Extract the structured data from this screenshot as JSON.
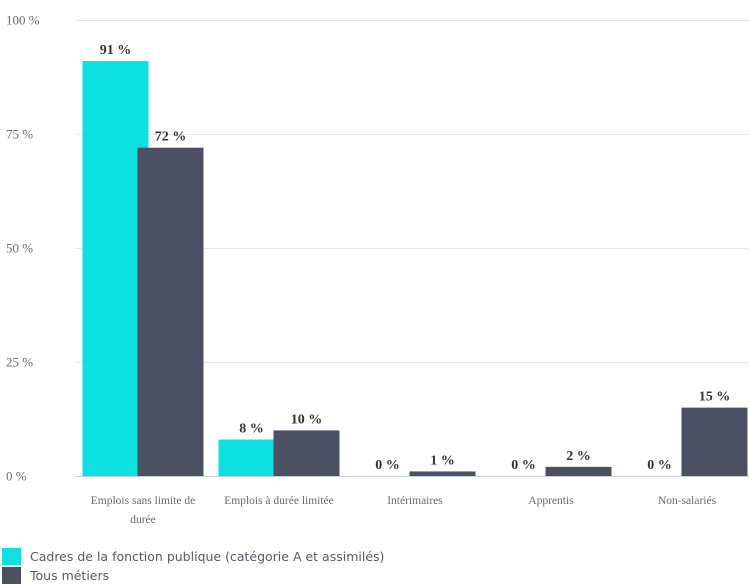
{
  "chart_data": {
    "type": "bar",
    "categories": [
      [
        "Emplois sans limite de",
        "durée"
      ],
      [
        "Emplois à durée limitée"
      ],
      [
        "Intérimaires"
      ],
      [
        "Apprentis"
      ],
      [
        "Non-salariés"
      ]
    ],
    "series": [
      {
        "name": "Cadres de la fonction publique (catégorie A et assimilés)",
        "values": [
          91,
          8,
          0,
          0,
          0
        ],
        "labels": [
          "91 %",
          "8 %",
          "0 %",
          "0 %",
          "0 %"
        ],
        "color": "#0ee0e2"
      },
      {
        "name": "Tous métiers",
        "values": [
          72,
          10,
          1,
          2,
          15
        ],
        "labels": [
          "72 %",
          "10 %",
          "1 %",
          "2 %",
          "15 %"
        ],
        "color": "#4b5163"
      }
    ],
    "yticks": [
      0,
      25,
      50,
      75,
      100
    ],
    "ytick_labels": [
      "0 %",
      "25 %",
      "50 %",
      "75 %",
      "100 %"
    ],
    "ylim": [
      0,
      100
    ],
    "grid": true,
    "legend_position": "bottom-left"
  }
}
